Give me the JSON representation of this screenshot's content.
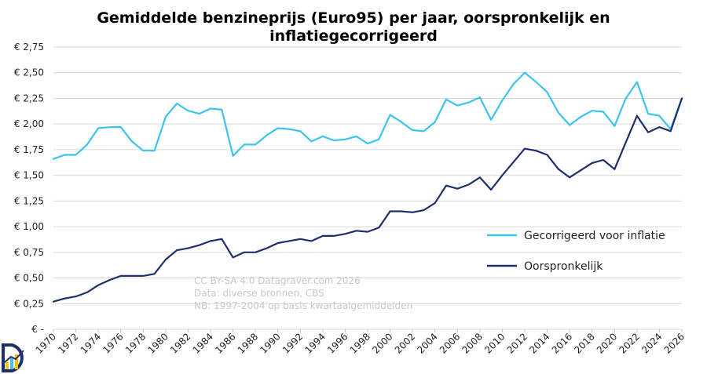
{
  "chart_data": {
    "type": "line",
    "title_lines": [
      "Gemiddelde benzineprijs (Euro95) per jaar, oorspronkelijk en",
      "inflatiegecorrigeerd"
    ],
    "ylim": [
      0,
      2.75
    ],
    "yticks": [
      0,
      0.25,
      0.5,
      0.75,
      1.0,
      1.25,
      1.5,
      1.75,
      2.0,
      2.25,
      2.5,
      2.75
    ],
    "ytick_labels": [
      "€ -",
      "€ 0,25",
      "€ 0,50",
      "€ 0,75",
      "€ 1,00",
      "€ 1,25",
      "€ 1,50",
      "€ 1,75",
      "€ 2,00",
      "€ 2,25",
      "€ 2,50",
      "€ 2,75"
    ],
    "xlim": [
      1970,
      2026
    ],
    "xticks": [
      1970,
      1972,
      1974,
      1976,
      1978,
      1980,
      1982,
      1984,
      1986,
      1988,
      1990,
      1992,
      1994,
      1996,
      1998,
      2000,
      2002,
      2004,
      2006,
      2008,
      2010,
      2012,
      2014,
      2016,
      2018,
      2020,
      2022,
      2024,
      2026
    ],
    "xtick_labels": [
      "1970",
      "1972",
      "1974",
      "1976",
      "1978",
      "1980",
      "1982",
      "1984",
      "1986",
      "1988",
      "1990",
      "1992",
      "1994",
      "1996",
      "1998",
      "2000",
      "2002",
      "2004",
      "2006",
      "2008",
      "2010",
      "2012",
      "2014",
      "2016",
      "2018",
      "2020",
      "2022",
      "2024",
      "2026"
    ],
    "grid": true,
    "legend_position": "right",
    "x": [
      1970,
      1971,
      1972,
      1973,
      1974,
      1975,
      1976,
      1977,
      1978,
      1979,
      1980,
      1981,
      1982,
      1983,
      1984,
      1985,
      1986,
      1987,
      1988,
      1989,
      1990,
      1991,
      1992,
      1993,
      1994,
      1995,
      1996,
      1997,
      1998,
      1999,
      2000,
      2001,
      2002,
      2003,
      2004,
      2005,
      2006,
      2007,
      2008,
      2009,
      2010,
      2011,
      2012,
      2013,
      2014,
      2015,
      2016,
      2017,
      2018,
      2019,
      2020,
      2021,
      2022,
      2023,
      2024,
      2025,
      2026
    ],
    "series": [
      {
        "name": "Gecorrigeerd voor inflatie",
        "color": "#3cc4ee",
        "values": [
          1.66,
          1.7,
          1.7,
          1.8,
          1.96,
          1.97,
          1.97,
          1.83,
          1.74,
          1.74,
          2.07,
          2.2,
          2.13,
          2.1,
          2.15,
          2.14,
          1.69,
          1.8,
          1.8,
          1.89,
          1.96,
          1.95,
          1.93,
          1.83,
          1.88,
          1.84,
          1.85,
          1.88,
          1.81,
          1.85,
          2.09,
          2.02,
          1.94,
          1.93,
          2.02,
          2.24,
          2.18,
          2.21,
          2.26,
          2.04,
          2.23,
          2.39,
          2.5,
          2.41,
          2.31,
          2.11,
          1.99,
          2.07,
          2.13,
          2.12,
          1.98,
          2.25,
          2.41,
          2.1,
          2.08,
          1.95,
          2.25
        ]
      },
      {
        "name": "Oorspronkelijk",
        "color": "#1f2f6b",
        "values": [
          0.27,
          0.3,
          0.32,
          0.36,
          0.43,
          0.48,
          0.52,
          0.52,
          0.52,
          0.54,
          0.68,
          0.77,
          0.79,
          0.82,
          0.86,
          0.88,
          0.7,
          0.75,
          0.75,
          0.79,
          0.84,
          0.86,
          0.88,
          0.86,
          0.91,
          0.91,
          0.93,
          0.96,
          0.95,
          0.99,
          1.15,
          1.15,
          1.14,
          1.16,
          1.23,
          1.4,
          1.37,
          1.41,
          1.48,
          1.36,
          1.5,
          1.63,
          1.76,
          1.74,
          1.7,
          1.56,
          1.48,
          1.55,
          1.62,
          1.65,
          1.56,
          1.82,
          2.08,
          1.92,
          1.97,
          1.93,
          2.25
        ]
      }
    ],
    "annotation_lines": [
      "CC BY-SA 4.0 Datagraver.com 2026",
      "Data: diverse bronnen, CBS",
      "NB: 1997-2004 op basis kwartaalgemiddelden"
    ]
  },
  "logo": {
    "name": "datagraver-logo",
    "colors": [
      "#1f2f6b",
      "#3cc4ee",
      "#f2c400"
    ]
  }
}
